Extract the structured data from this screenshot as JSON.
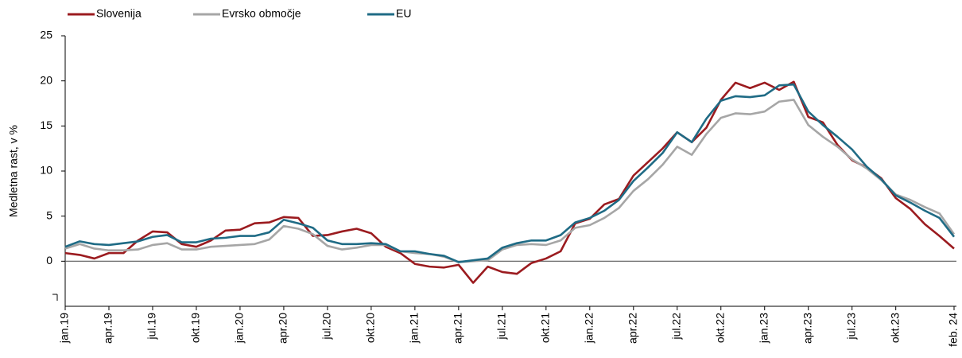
{
  "chart_data": {
    "type": "line",
    "y_label": "Medletna rast, v %",
    "categories": [
      "jan.19",
      null,
      null,
      "apr.19",
      null,
      null,
      "jul.19",
      null,
      null,
      "okt.19",
      null,
      null,
      "jan.20",
      null,
      null,
      "apr.20",
      null,
      null,
      "jul.20",
      null,
      null,
      "okt.20",
      null,
      null,
      "jan.21",
      null,
      null,
      "apr.21",
      null,
      null,
      "jul.21",
      null,
      null,
      "okt.21",
      null,
      null,
      "jan.22",
      null,
      null,
      "apr.22",
      null,
      null,
      "jul.22",
      null,
      null,
      "okt.22",
      null,
      null,
      "jan.23",
      null,
      null,
      "apr.23",
      null,
      null,
      "jul.23",
      null,
      null,
      "okt.23",
      null,
      null,
      null,
      "feb. 24"
    ],
    "series": [
      {
        "name": "Slovenija",
        "color": "#9b1b1f",
        "values": [
          0.9,
          0.7,
          0.3,
          0.9,
          0.9,
          2.3,
          3.3,
          3.2,
          1.9,
          1.6,
          2.3,
          3.4,
          3.5,
          4.2,
          4.3,
          4.9,
          4.8,
          2.8,
          2.9,
          3.3,
          3.6,
          3.1,
          1.6,
          0.9,
          -0.3,
          -0.6,
          -0.7,
          -0.4,
          -2.4,
          -0.6,
          -1.2,
          -1.4,
          -0.2,
          0.3,
          1.1,
          4.2,
          4.7,
          6.3,
          6.9,
          9.5,
          11.0,
          12.5,
          14.3,
          13.2,
          14.8,
          17.9,
          19.8,
          19.2,
          19.8,
          19.0,
          19.9,
          16.0,
          15.4,
          12.9,
          11.2,
          10.4,
          9.2,
          7.0,
          5.8,
          4.1,
          2.8,
          1.4
        ]
      },
      {
        "name": "Evrsko območje",
        "color": "#a6a6a6",
        "values": [
          1.4,
          1.9,
          1.4,
          1.2,
          1.2,
          1.3,
          1.8,
          2.0,
          1.3,
          1.3,
          1.6,
          1.7,
          1.8,
          1.9,
          2.4,
          3.9,
          3.6,
          3.0,
          1.7,
          1.3,
          1.5,
          1.8,
          1.8,
          1.1,
          0.9,
          0.8,
          0.5,
          -0.1,
          0.0,
          0.1,
          1.3,
          1.8,
          1.9,
          1.8,
          2.3,
          3.7,
          4.0,
          4.8,
          5.9,
          7.8,
          9.1,
          10.7,
          12.7,
          11.8,
          14.1,
          15.9,
          16.4,
          16.3,
          16.6,
          17.7,
          17.9,
          15.1,
          13.8,
          12.7,
          11.3,
          10.3,
          9.0,
          7.4,
          6.8,
          6.0,
          5.3,
          3.0
        ]
      },
      {
        "name": "EU",
        "color": "#1f6b85",
        "values": [
          1.6,
          2.2,
          1.9,
          1.8,
          2.0,
          2.2,
          2.7,
          2.9,
          2.1,
          2.1,
          2.5,
          2.6,
          2.8,
          2.8,
          3.2,
          4.6,
          4.2,
          3.7,
          2.3,
          1.9,
          1.9,
          2.0,
          1.9,
          1.1,
          1.1,
          0.8,
          0.6,
          -0.1,
          0.1,
          0.3,
          1.5,
          2.0,
          2.3,
          2.3,
          2.9,
          4.3,
          4.8,
          5.6,
          6.8,
          8.9,
          10.4,
          12.0,
          14.3,
          13.2,
          15.8,
          17.8,
          18.3,
          18.2,
          18.4,
          19.5,
          19.6,
          16.6,
          15.1,
          13.8,
          12.4,
          10.5,
          9.1,
          7.3,
          6.5,
          5.6,
          4.8,
          2.7
        ]
      }
    ],
    "ylim": [
      -5,
      25
    ],
    "yticks": [
      0,
      5,
      10,
      15,
      20,
      25
    ],
    "grid": false,
    "legend": "top"
  }
}
